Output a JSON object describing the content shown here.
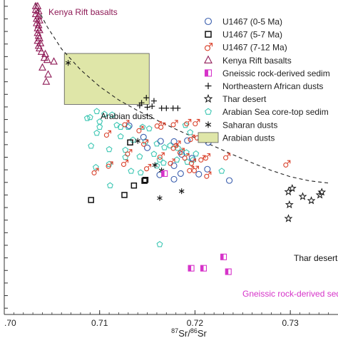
{
  "chart_data": {
    "type": "scatter",
    "xlabel_parts": [
      "87",
      "Sr/",
      "86",
      "Sr"
    ],
    "xlim": [
      0.7,
      0.735
    ],
    "x_ticks": [
      {
        "value": 0.7,
        "label": ".70"
      },
      {
        "value": 0.71,
        "label": "0.71"
      },
      {
        "value": 0.72,
        "label": "0.72"
      },
      {
        "value": 0.73,
        "label": "0.73"
      }
    ],
    "y_range": [
      0,
      100
    ],
    "y_minor_ticks": [
      2,
      6,
      10,
      14,
      18,
      22,
      26,
      30,
      34,
      38,
      42,
      46,
      50,
      54,
      58,
      62,
      66,
      70,
      74,
      78,
      82,
      86,
      90,
      94,
      98
    ],
    "legend_position": "top-right",
    "legend": [
      {
        "label": "U1467 (0-5 Ma)",
        "series": "u1467_0_5"
      },
      {
        "label": "U1467 (5-7 Ma)",
        "series": "u1467_5_7"
      },
      {
        "label": "U1467 (7-12 Ma)",
        "series": "u1467_7_12"
      },
      {
        "label": "Kenya Rift basalts",
        "series": "kenya"
      },
      {
        "label": "Gneissic rock-derived sedim",
        "series": "gneiss"
      },
      {
        "label": "Northeastern African dusts",
        "series": "ne_africa"
      },
      {
        "label": "Thar desert",
        "series": "thar"
      },
      {
        "label": "Arabian Sea core-top sedim",
        "series": "core_top"
      },
      {
        "label": "Saharan dusts",
        "series": "sahara"
      },
      {
        "label": "Arabian dusts",
        "series": "arabian_box"
      }
    ],
    "annotations": {
      "kenya": "Kenya Rift basalts",
      "arabian": "Arabian dusts",
      "thar": "Thar desert",
      "gneiss": "Gneissic rock-derived sed"
    },
    "arabian_box": {
      "x": [
        0.7063,
        0.7152
      ],
      "y": [
        66.8,
        83.0
      ]
    },
    "mixing_curve": {
      "style": "dashed",
      "points": [
        [
          0.7032,
          99
        ],
        [
          0.7045,
          91.5
        ],
        [
          0.706,
          84.5
        ],
        [
          0.708,
          77.8
        ],
        [
          0.71,
          72.5
        ],
        [
          0.712,
          68.2
        ],
        [
          0.714,
          64.8
        ],
        [
          0.716,
          61.8
        ],
        [
          0.718,
          58.9
        ],
        [
          0.72,
          56.2
        ],
        [
          0.722,
          53.5
        ],
        [
          0.724,
          50.8
        ],
        [
          0.726,
          48.2
        ],
        [
          0.728,
          45.8
        ],
        [
          0.73,
          43.8
        ],
        [
          0.732,
          42.5
        ],
        [
          0.734,
          41.8
        ]
      ]
    },
    "colors": {
      "u1467_0_5": "#3b5fae",
      "u1467_5_7": "#111111",
      "u1467_7_12": "#d9402a",
      "kenya": "#8e1a56",
      "gneiss": "#d633c9",
      "ne_africa": "#111111",
      "thar": "#111111",
      "core_top": "#3fc7b4",
      "sahara": "#111111",
      "arabian_box_fill": "#dfe6a8",
      "arabian_box_stroke": "#555555",
      "kenya_label": "#8e1a56",
      "gneiss_label": "#d633c9"
    },
    "series": [
      {
        "key": "kenya",
        "marker": "triangle",
        "points": [
          [
            0.7033,
            98
          ],
          [
            0.7035,
            98
          ],
          [
            0.7033,
            96.8
          ],
          [
            0.7036,
            96.4
          ],
          [
            0.7033,
            95.5
          ],
          [
            0.7036,
            94.8
          ],
          [
            0.7034,
            94
          ],
          [
            0.7037,
            93.5
          ],
          [
            0.7034,
            92.6
          ],
          [
            0.7036,
            92
          ],
          [
            0.7035,
            91
          ],
          [
            0.7037,
            90.4
          ],
          [
            0.7035,
            89.5
          ],
          [
            0.7036,
            88.6
          ],
          [
            0.7037,
            87.8
          ],
          [
            0.7035,
            87
          ],
          [
            0.7038,
            86.2
          ],
          [
            0.7036,
            85.4
          ],
          [
            0.7037,
            84.6
          ],
          [
            0.7039,
            83.5
          ],
          [
            0.7043,
            82.8
          ],
          [
            0.7042,
            81.6
          ],
          [
            0.7045,
            80.9
          ],
          [
            0.7052,
            80.4
          ],
          [
            0.704,
            78.5
          ],
          [
            0.7046,
            76.3
          ],
          [
            0.7044,
            74.0
          ]
        ]
      },
      {
        "key": "arabian_pt",
        "marker": "asterisk",
        "color_key": "sahara",
        "points": [
          [
            0.7067,
            80.0
          ]
        ]
      },
      {
        "key": "ne_africa",
        "marker": "plus",
        "points": [
          [
            0.7144,
            67.3
          ],
          [
            0.7149,
            68.9
          ],
          [
            0.7157,
            67.9
          ],
          [
            0.7142,
            66.4
          ],
          [
            0.715,
            65.9
          ],
          [
            0.7155,
            66.2
          ],
          [
            0.7165,
            65.6
          ],
          [
            0.717,
            65.6
          ],
          [
            0.7177,
            65.6
          ],
          [
            0.7182,
            65.6
          ]
        ]
      },
      {
        "key": "core_top",
        "marker": "pentagon",
        "points": [
          [
            0.7097,
            64.6
          ],
          [
            0.7105,
            63.7
          ],
          [
            0.71,
            61.3
          ],
          [
            0.7113,
            63.5
          ],
          [
            0.709,
            62.7
          ],
          [
            0.7087,
            62.4
          ],
          [
            0.7118,
            60.2
          ],
          [
            0.71,
            59.6
          ],
          [
            0.7097,
            57.7
          ],
          [
            0.713,
            59.6
          ],
          [
            0.7122,
            59.6
          ],
          [
            0.7145,
            59.6
          ],
          [
            0.7152,
            59.1
          ],
          [
            0.7122,
            56.6
          ],
          [
            0.7135,
            55.5
          ],
          [
            0.7148,
            55.0
          ],
          [
            0.7091,
            53.6
          ],
          [
            0.711,
            52.5
          ],
          [
            0.7127,
            52.3
          ],
          [
            0.716,
            54.3
          ],
          [
            0.7127,
            50.0
          ],
          [
            0.711,
            47.8
          ],
          [
            0.7096,
            46.8
          ],
          [
            0.7157,
            51.0
          ],
          [
            0.7142,
            50.2
          ],
          [
            0.719,
            60.2
          ],
          [
            0.7195,
            57.9
          ],
          [
            0.7186,
            51.7
          ],
          [
            0.7191,
            51.5
          ],
          [
            0.7133,
            45.6
          ],
          [
            0.7143,
            45.1
          ],
          [
            0.716,
            47.3
          ],
          [
            0.7163,
            49.2
          ],
          [
            0.7167,
            48.2
          ],
          [
            0.7168,
            53.1
          ],
          [
            0.7174,
            53.7
          ],
          [
            0.7182,
            52.9
          ],
          [
            0.7192,
            48.5
          ],
          [
            0.7198,
            49.2
          ],
          [
            0.7181,
            49.2
          ],
          [
            0.7228,
            45.6
          ],
          [
            0.7201,
            51.1
          ],
          [
            0.7111,
            41.0
          ],
          [
            0.7163,
            22.3
          ]
        ]
      },
      {
        "key": "u1467_0_5",
        "marker": "circle",
        "points": [
          [
            0.7131,
            60.0
          ],
          [
            0.7146,
            56.4
          ],
          [
            0.7164,
            55.1
          ],
          [
            0.7178,
            55.0
          ],
          [
            0.7192,
            55.3
          ],
          [
            0.7214,
            54.7
          ],
          [
            0.715,
            53.0
          ],
          [
            0.7186,
            50.9
          ],
          [
            0.7197,
            49.7
          ],
          [
            0.7178,
            47.3
          ],
          [
            0.7213,
            46.2
          ],
          [
            0.7236,
            42.6
          ],
          [
            0.7163,
            44.4
          ],
          [
            0.7204,
            44.6
          ],
          [
            0.7178,
            43.0
          ],
          [
            0.7185,
            44.8
          ]
        ]
      },
      {
        "key": "u1467_5_7",
        "marker": "square",
        "points": [
          [
            0.7091,
            36.4
          ],
          [
            0.7126,
            38.0
          ],
          [
            0.7136,
            41.0
          ],
          [
            0.7147,
            42.5
          ],
          [
            0.7148,
            42.8
          ],
          [
            0.7132,
            54.7
          ]
        ]
      },
      {
        "key": "u1467_7_12",
        "marker": "male",
        "points": [
          [
            0.7108,
            57.3
          ],
          [
            0.7127,
            60.6
          ],
          [
            0.7142,
            58.7
          ],
          [
            0.7161,
            60.2
          ],
          [
            0.7165,
            59.8
          ],
          [
            0.7178,
            60.6
          ],
          [
            0.7192,
            60.9
          ],
          [
            0.7201,
            60.9
          ],
          [
            0.713,
            51.3
          ],
          [
            0.7147,
            54.4
          ],
          [
            0.7164,
            50.3
          ],
          [
            0.7178,
            53.1
          ],
          [
            0.7181,
            54.0
          ],
          [
            0.7196,
            55.9
          ],
          [
            0.7203,
            56.4
          ],
          [
            0.7207,
            49.4
          ],
          [
            0.7195,
            46.0
          ],
          [
            0.715,
            46.6
          ],
          [
            0.7126,
            48.0
          ],
          [
            0.711,
            47.4
          ],
          [
            0.7095,
            45.3
          ],
          [
            0.7175,
            48.3
          ],
          [
            0.7185,
            51.7
          ],
          [
            0.719,
            50.0
          ],
          [
            0.7212,
            50.0
          ],
          [
            0.7233,
            50.1
          ],
          [
            0.72,
            46.0
          ],
          [
            0.7197,
            48.3
          ],
          [
            0.7296,
            47.8
          ],
          [
            0.7213,
            44.2
          ]
        ]
      },
      {
        "key": "sahara",
        "marker": "asterisk",
        "points": [
          [
            0.714,
            55.2
          ],
          [
            0.7158,
            47.5
          ],
          [
            0.7165,
            45.8
          ],
          [
            0.7186,
            39.2
          ],
          [
            0.7163,
            37.0
          ]
        ]
      },
      {
        "key": "thar",
        "marker": "star",
        "points": [
          [
            0.7298,
            39.0
          ],
          [
            0.7302,
            40.1
          ],
          [
            0.7313,
            37.5
          ],
          [
            0.7331,
            38.0
          ],
          [
            0.7333,
            38.9
          ],
          [
            0.7322,
            36.2
          ],
          [
            0.7299,
            34.9
          ],
          [
            0.7298,
            30.5
          ]
        ]
      },
      {
        "key": "gneiss",
        "marker": "halfsquare",
        "points": [
          [
            0.7168,
            44.8
          ],
          [
            0.723,
            18.3
          ],
          [
            0.7209,
            14.7
          ],
          [
            0.7196,
            14.7
          ],
          [
            0.7235,
            13.6
          ]
        ]
      }
    ]
  }
}
